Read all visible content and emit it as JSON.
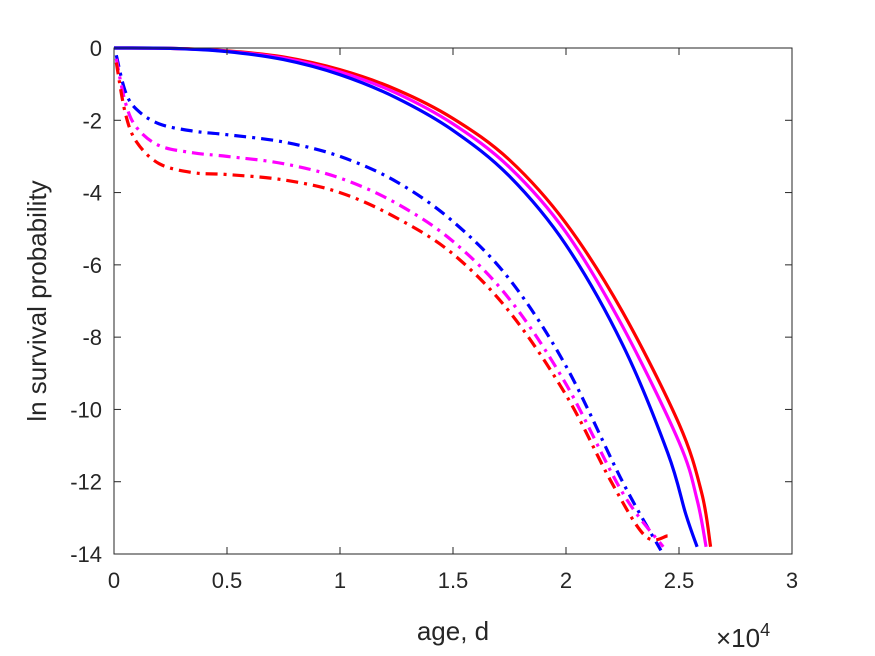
{
  "chart_data": {
    "type": "line",
    "title": "",
    "xlabel": "age, d",
    "ylabel": "ln survival probability",
    "x_multiplier_label": {
      "base": "×10",
      "exponent": "4"
    },
    "xlim": [
      0,
      3
    ],
    "ylim": [
      -14,
      0
    ],
    "xticks": [
      0,
      0.5,
      1,
      1.5,
      2,
      2.5,
      3
    ],
    "xtick_labels": [
      "0",
      "0.5",
      "1",
      "1.5",
      "2",
      "2.5",
      "3"
    ],
    "yticks": [
      0,
      -2,
      -4,
      -6,
      -8,
      -10,
      -12,
      -14
    ],
    "ytick_labels": [
      "0",
      "-2",
      "-4",
      "-6",
      "-8",
      "-10",
      "-12",
      "-14"
    ],
    "grid": false,
    "series": [
      {
        "style": "solid",
        "color": "#ff0000",
        "x": [
          0,
          0.25,
          0.5,
          0.75,
          1.0,
          1.25,
          1.5,
          1.75,
          2.0,
          2.25,
          2.5,
          2.6,
          2.64
        ],
        "y": [
          0,
          -0.01,
          -0.08,
          -0.25,
          -0.6,
          -1.15,
          -1.95,
          -3.1,
          -4.85,
          -7.3,
          -10.4,
          -12.3,
          -13.8
        ]
      },
      {
        "style": "solid",
        "color": "#ff00ff",
        "x": [
          0,
          0.25,
          0.5,
          0.75,
          1.0,
          1.25,
          1.5,
          1.75,
          2.0,
          2.25,
          2.5,
          2.58,
          2.62
        ],
        "y": [
          0,
          -0.01,
          -0.09,
          -0.28,
          -0.66,
          -1.25,
          -2.1,
          -3.3,
          -5.1,
          -7.7,
          -10.9,
          -12.5,
          -13.8
        ]
      },
      {
        "style": "solid",
        "color": "#0000ff",
        "x": [
          0,
          0.25,
          0.5,
          0.75,
          1.0,
          1.25,
          1.5,
          1.75,
          2.0,
          2.25,
          2.45,
          2.53,
          2.58
        ],
        "y": [
          0,
          -0.01,
          -0.1,
          -0.32,
          -0.74,
          -1.38,
          -2.28,
          -3.55,
          -5.45,
          -8.2,
          -11.2,
          -12.9,
          -13.8
        ]
      },
      {
        "style": "dashdot",
        "color": "#0000ff",
        "x": [
          0.01,
          0.05,
          0.1,
          0.2,
          0.35,
          0.5,
          0.75,
          1.0,
          1.25,
          1.5,
          1.75,
          2.0,
          2.25,
          2.42
        ],
        "y": [
          -0.2,
          -1.2,
          -1.7,
          -2.1,
          -2.3,
          -2.4,
          -2.6,
          -3.0,
          -3.7,
          -4.8,
          -6.4,
          -8.8,
          -12.0,
          -13.9
        ]
      },
      {
        "style": "dashdot",
        "color": "#ff00ff",
        "x": [
          0.01,
          0.05,
          0.1,
          0.2,
          0.35,
          0.5,
          0.75,
          1.0,
          1.25,
          1.5,
          1.75,
          2.0,
          2.25,
          2.43
        ],
        "y": [
          -0.3,
          -1.5,
          -2.2,
          -2.7,
          -2.9,
          -3.0,
          -3.2,
          -3.6,
          -4.3,
          -5.35,
          -6.95,
          -9.3,
          -12.3,
          -13.8
        ]
      },
      {
        "style": "dashdot",
        "color": "#ff0000",
        "x": [
          0.01,
          0.05,
          0.1,
          0.2,
          0.35,
          0.5,
          0.75,
          1.0,
          1.25,
          1.5,
          1.75,
          2.0,
          2.2,
          2.35,
          2.45
        ],
        "y": [
          -0.4,
          -1.8,
          -2.6,
          -3.2,
          -3.45,
          -3.5,
          -3.65,
          -4.0,
          -4.7,
          -5.7,
          -7.3,
          -9.6,
          -12.0,
          -13.5,
          -13.5
        ]
      }
    ]
  }
}
